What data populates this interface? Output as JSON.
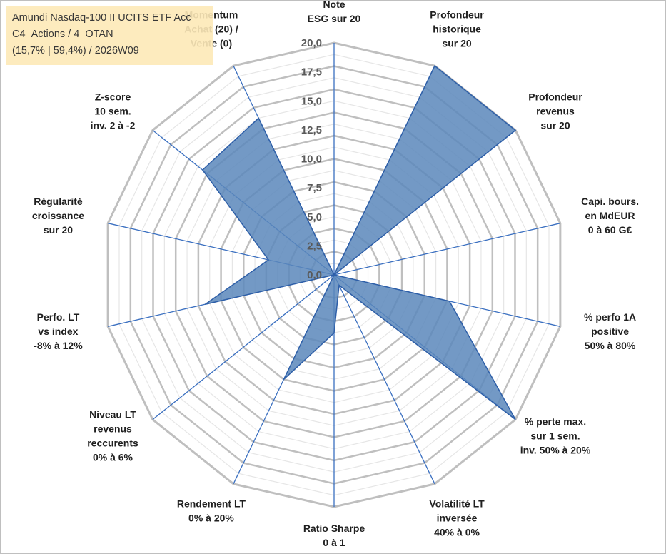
{
  "chart_data": {
    "type": "radar",
    "title_lines": [
      "Amundi Nasdaq-100 II UCITS ETF Acc",
      "C4_Actions / 4_OTAN",
      "(15,7% | 59,4%) / 2026W09"
    ],
    "rlim": [
      0,
      20
    ],
    "ticks": [
      "0,0",
      "2,5",
      "5,0",
      "7,5",
      "10,0",
      "12,5",
      "15,0",
      "17,5",
      "20,0"
    ],
    "grid": true,
    "categories": [
      [
        "Note",
        "ESG sur 20"
      ],
      [
        "Profondeur",
        "historique",
        "sur 20"
      ],
      [
        "Profondeur",
        "revenus",
        "sur 20"
      ],
      [
        "Capi. bours.",
        "en MdEUR",
        "0 à 60 G€"
      ],
      [
        "% perfo 1A",
        "positive",
        "50% à 80%"
      ],
      [
        "% perte max.",
        "sur 1 sem.",
        "inv. 50% à 20%"
      ],
      [
        "Volatilité LT",
        "inversée",
        "40% à 0%"
      ],
      [
        "Ratio Sharpe",
        "0 à 1"
      ],
      [
        "Rendement LT",
        "0% à 20%"
      ],
      [
        "Niveau LT",
        "revenus",
        "reccurents",
        "0% à 6%"
      ],
      [
        "Perfo. LT",
        "vs index",
        "-8% à 12%"
      ],
      [
        "Régularité",
        "croissance",
        "sur 20"
      ],
      [
        "Z-score",
        "10 sem.",
        "inv. 2 à -2"
      ],
      [
        "Momentum",
        "Achat (20) /",
        "Vente (0)"
      ]
    ],
    "series": [
      {
        "values": [
          0,
          20,
          20,
          0,
          10.2,
          20,
          1,
          5,
          10,
          0,
          11.4,
          5.8,
          14.5,
          15
        ],
        "fill": "#5b87bb",
        "stroke": "#2e5fa8"
      }
    ],
    "colors": {
      "grid": "#bfbfbf",
      "spoke": "#3a6fc0",
      "title_box": "#fde9b8"
    }
  }
}
